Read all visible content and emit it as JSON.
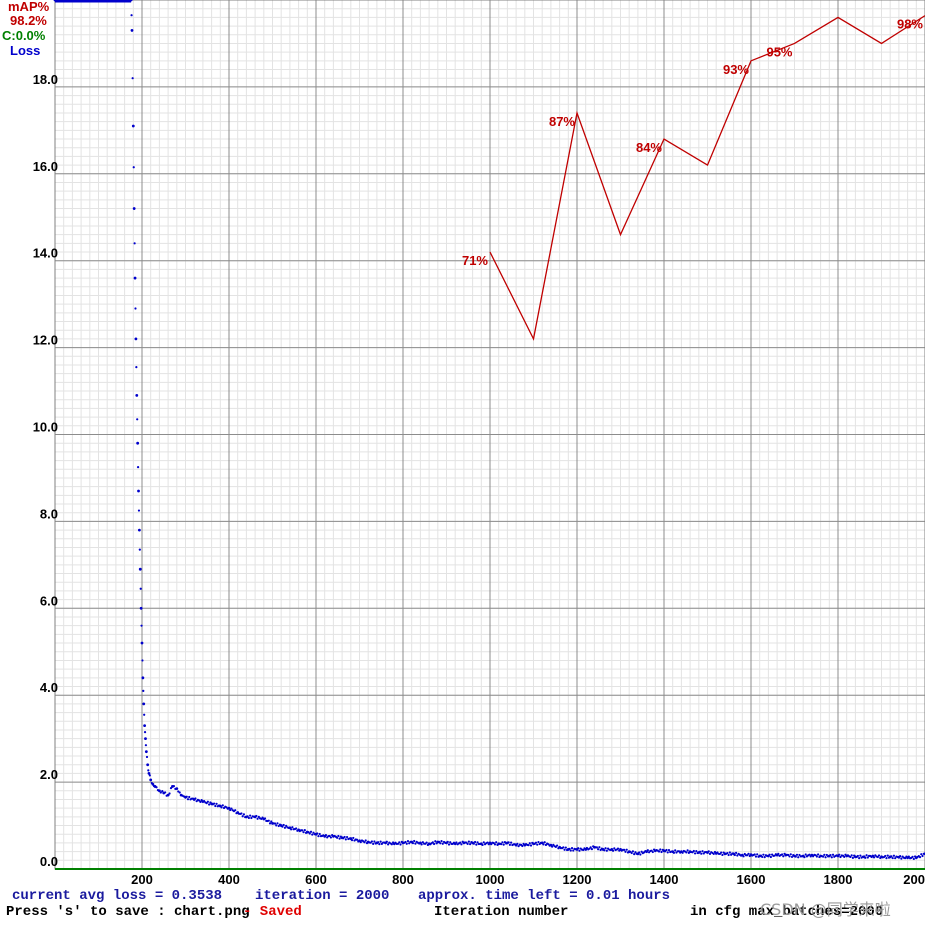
{
  "chart_data": {
    "type": "line",
    "legend": {
      "map_label": "mAP%",
      "map_value": "98.2%",
      "c_label": "C:0.0%",
      "loss_label": "Loss",
      "colors": {
        "map": "#c00000",
        "c": "#008000",
        "loss": "#0000cc"
      }
    },
    "x_ticks": [
      "200",
      "400",
      "600",
      "800",
      "1000",
      "1200",
      "1400",
      "1600",
      "1800",
      "200"
    ],
    "y_ticks": [
      "0.0",
      "2.0",
      "4.0",
      "6.0",
      "8.0",
      "10.0",
      "12.0",
      "14.0",
      "16.0",
      "18.0"
    ],
    "xlim": [
      0,
      2000
    ],
    "ylim": [
      0,
      20
    ],
    "grid": true,
    "series": [
      {
        "name": "Loss",
        "color": "#0000cc",
        "x": [
          0,
          50,
          100,
          150,
          175,
          177,
          180,
          182,
          184,
          186,
          188,
          190,
          192,
          194,
          196,
          198,
          200,
          202,
          204,
          206,
          208,
          210,
          213,
          216,
          220,
          225,
          230,
          240,
          250,
          260,
          270,
          280,
          290,
          300,
          320,
          340,
          360,
          380,
          400,
          420,
          440,
          460,
          480,
          500,
          520,
          540,
          560,
          580,
          600,
          620,
          640,
          660,
          680,
          700,
          720,
          740,
          760,
          780,
          800,
          820,
          840,
          860,
          880,
          900,
          920,
          940,
          960,
          980,
          1000,
          1020,
          1040,
          1060,
          1080,
          1100,
          1120,
          1140,
          1160,
          1180,
          1200,
          1220,
          1240,
          1260,
          1280,
          1300,
          1320,
          1340,
          1360,
          1380,
          1400,
          1420,
          1440,
          1460,
          1480,
          1500,
          1520,
          1540,
          1560,
          1580,
          1600,
          1620,
          1640,
          1660,
          1680,
          1700,
          1720,
          1740,
          1760,
          1780,
          1800,
          1820,
          1840,
          1860,
          1880,
          1900,
          1920,
          1940,
          1960,
          1980,
          2000
        ],
        "values": [
          20.0,
          20.0,
          20.0,
          20.0,
          20.0,
          19.3,
          17.1,
          15.2,
          13.6,
          12.2,
          10.9,
          9.8,
          8.7,
          7.8,
          6.9,
          6.0,
          5.2,
          4.4,
          3.8,
          3.3,
          3.0,
          2.7,
          2.4,
          2.2,
          2.05,
          1.95,
          1.9,
          1.8,
          1.75,
          1.7,
          1.9,
          1.85,
          1.7,
          1.65,
          1.6,
          1.55,
          1.5,
          1.45,
          1.4,
          1.3,
          1.2,
          1.2,
          1.15,
          1.05,
          1.0,
          0.95,
          0.9,
          0.85,
          0.8,
          0.75,
          0.75,
          0.72,
          0.7,
          0.65,
          0.62,
          0.6,
          0.6,
          0.58,
          0.6,
          0.62,
          0.6,
          0.58,
          0.62,
          0.6,
          0.58,
          0.6,
          0.6,
          0.58,
          0.6,
          0.58,
          0.6,
          0.55,
          0.55,
          0.58,
          0.6,
          0.55,
          0.5,
          0.45,
          0.45,
          0.45,
          0.5,
          0.45,
          0.45,
          0.45,
          0.4,
          0.35,
          0.4,
          0.42,
          0.42,
          0.4,
          0.4,
          0.4,
          0.38,
          0.38,
          0.36,
          0.35,
          0.35,
          0.32,
          0.33,
          0.3,
          0.3,
          0.32,
          0.32,
          0.3,
          0.3,
          0.32,
          0.3,
          0.3,
          0.3,
          0.3,
          0.28,
          0.28,
          0.3,
          0.28,
          0.28,
          0.27,
          0.26,
          0.26,
          0.35
        ]
      },
      {
        "name": "mAP%",
        "color": "#c00000",
        "x": [
          1000,
          1100,
          1200,
          1300,
          1400,
          1500,
          1600,
          1700,
          1800,
          1900,
          2000
        ],
        "values": [
          71,
          61,
          87,
          73,
          84,
          81,
          93,
          95,
          98,
          95,
          98.2
        ]
      }
    ],
    "point_labels": [
      {
        "x": 1000,
        "value": 71,
        "label": "71%"
      },
      {
        "x": 1200,
        "value": 87,
        "label": "87%"
      },
      {
        "x": 1400,
        "value": 84,
        "label": "84%"
      },
      {
        "x": 1600,
        "value": 93,
        "label": "93%"
      },
      {
        "x": 1700,
        "value": 95,
        "label": "95%"
      },
      {
        "x": 2000,
        "value": 98.2,
        "label": "98%"
      }
    ]
  },
  "footer": {
    "current_avg_loss": "current avg loss = 0.3538",
    "iteration": "iteration = 2000",
    "time_left": "approx. time left = 0.01 hours",
    "save_hint": "Press 's' to save : chart.png",
    "saved": "- Saved",
    "xlabel": "Iteration number",
    "max_batches": "in cfg max_batches=2000"
  },
  "watermark": "CSDN @同学来啦"
}
